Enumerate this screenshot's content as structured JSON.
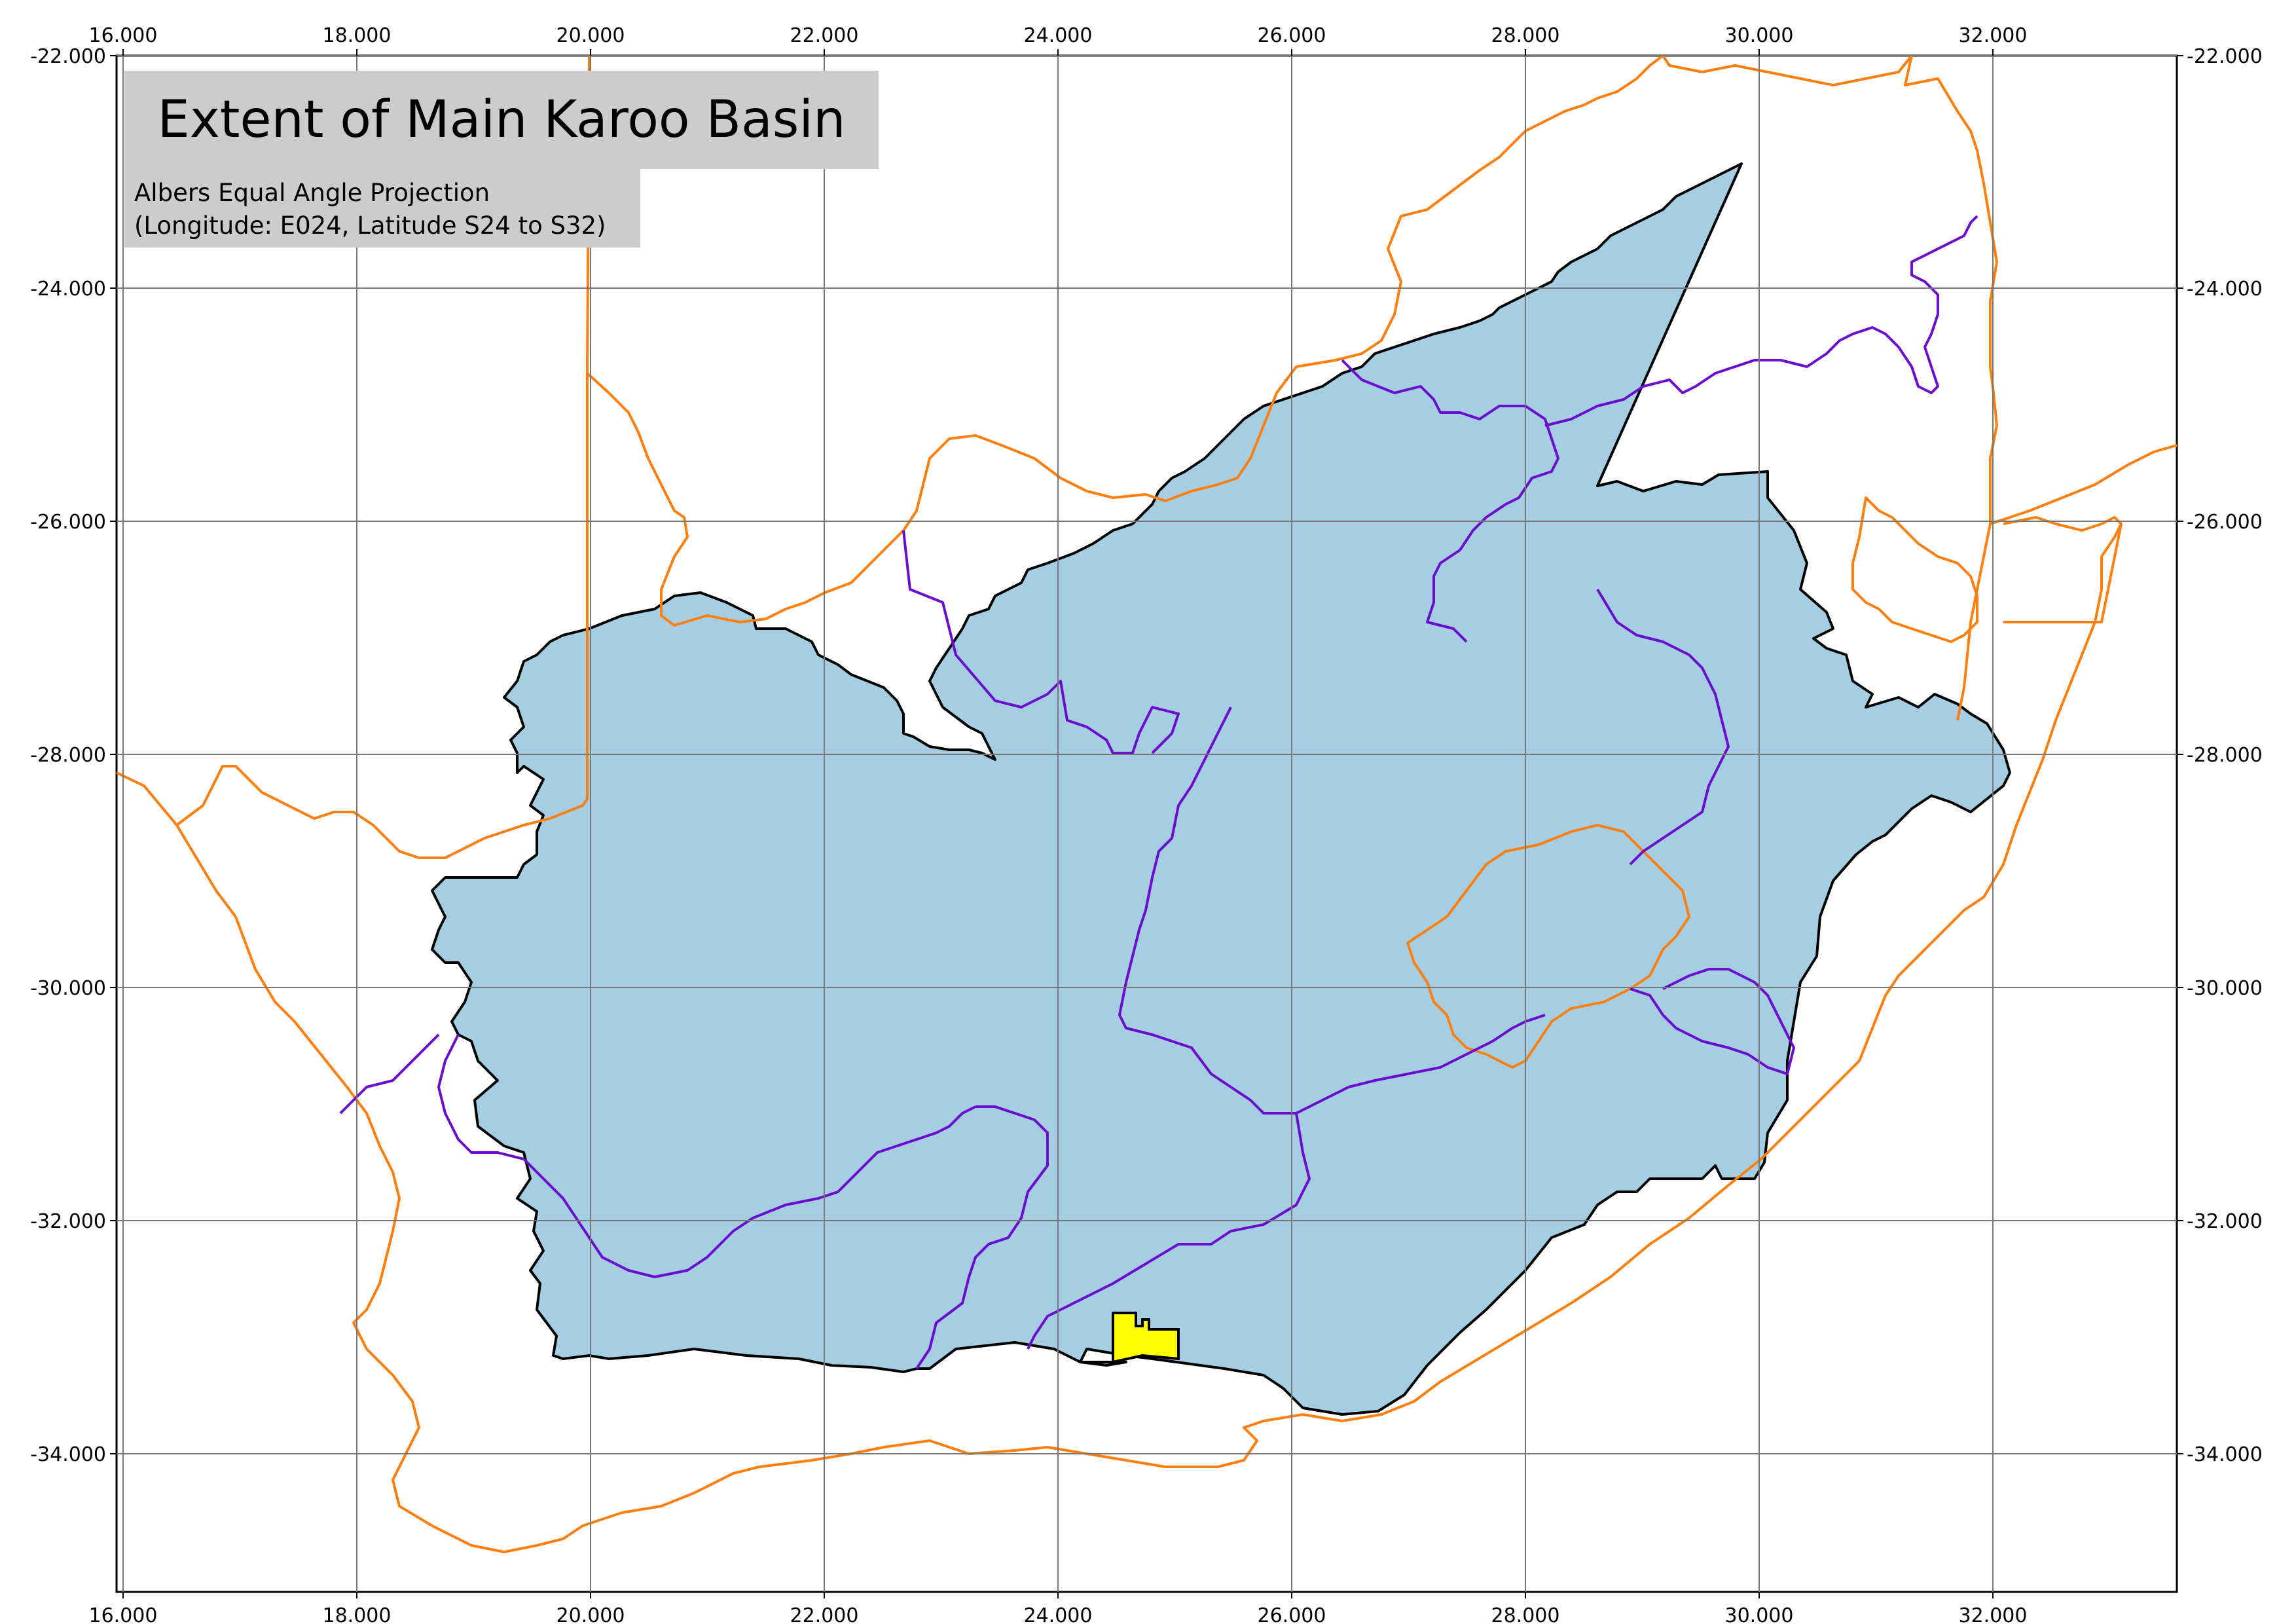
{
  "map": {
    "title": "Extent of Main Karoo Basin",
    "subtitle_line1": "Albers Equal Angle Projection",
    "subtitle_line2": "(Longitude: E024, Latitude S24 to S32)",
    "x_ticks": [
      "16.000",
      "18.000",
      "20.000",
      "22.000",
      "24.000",
      "26.000",
      "28.000",
      "30.000",
      "32.000"
    ],
    "y_ticks": [
      "-22.000",
      "-24.000",
      "-26.000",
      "-28.000",
      "-30.000",
      "-32.000",
      "-34.000"
    ],
    "colors": {
      "basin_fill": "#a6cee3",
      "basin_outline": "#000000",
      "country_border": "#ff7f0e",
      "province_border": "#6a0dcc",
      "highlight": "#ffff00",
      "grid": "#777777",
      "title_box": "#cccccc"
    },
    "layers": [
      "country-borders",
      "province-borders",
      "karoo-basin",
      "study-area-highlight",
      "graticule"
    ]
  }
}
